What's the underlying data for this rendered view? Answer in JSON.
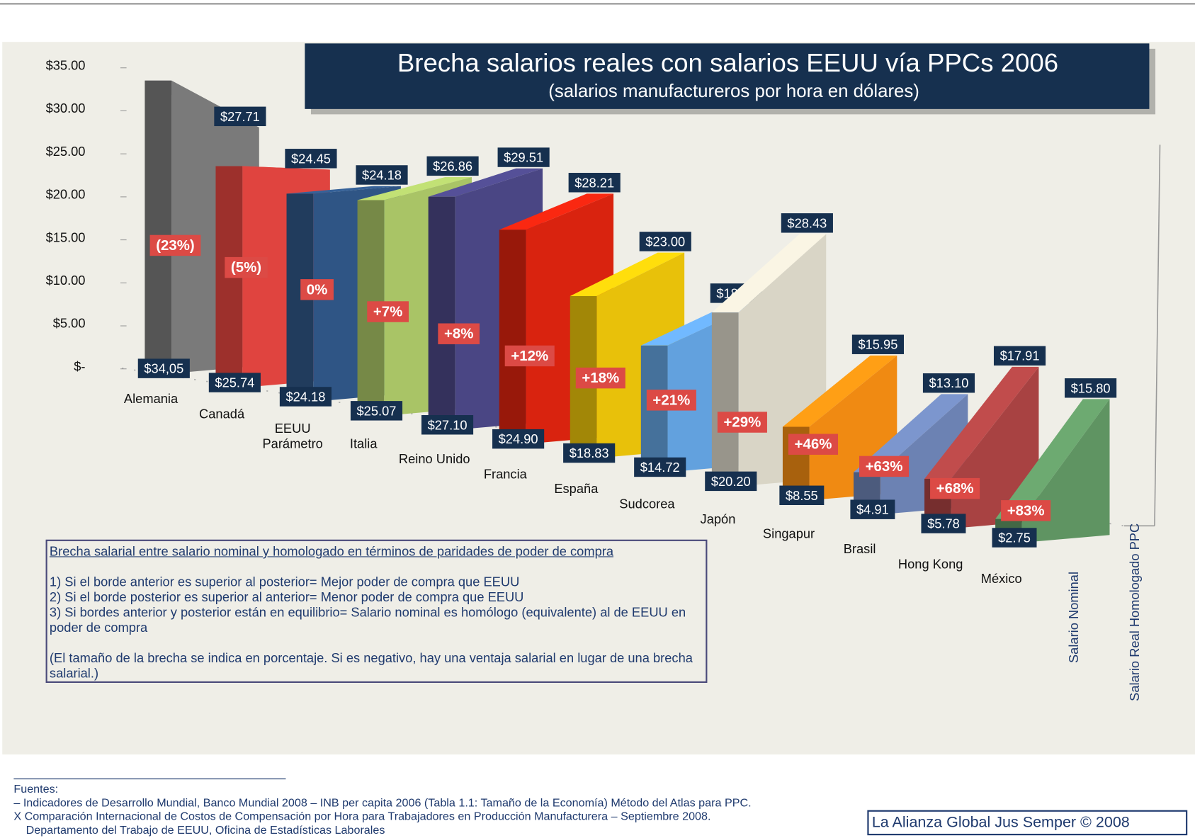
{
  "chart_data": {
    "type": "bar",
    "title": "Brecha salarios reales con salarios EEUU vía PPCs 2006",
    "subtitle": "(salarios manufactureros por hora en dólares)",
    "categories": [
      "Alemania",
      "Canadá",
      "EEUU Parámetro",
      "Italia",
      "Reino Unido",
      "Francia",
      "España",
      "Sudcorea",
      "Japón",
      "Singapur",
      "Brasil",
      "Hong Kong",
      "México"
    ],
    "colors": [
      "#7a7a7a",
      "#e0443f",
      "#2f5585",
      "#a9c466",
      "#4a4684",
      "#d9230f",
      "#e8c10a",
      "#62a1de",
      "#d9d5c6",
      "#f08a12",
      "#6c82b3",
      "#a84242",
      "#5f9462"
    ],
    "series": [
      {
        "name": "Salario Nominal",
        "values": [
          34.05,
          25.74,
          24.18,
          25.07,
          27.1,
          24.9,
          18.83,
          14.72,
          20.2,
          8.55,
          4.91,
          5.78,
          2.75
        ],
        "value_labels": [
          "$34,05",
          "$25.74",
          "$24.18",
          "$25.07",
          "$27.10",
          "$24.90",
          "$18.83",
          "$14.72",
          "$20.20",
          "$8.55",
          "$4.91",
          "$5.78",
          "$2.75"
        ]
      },
      {
        "name": "Salario Real Homologado PPC",
        "values": [
          27.71,
          24.45,
          24.18,
          26.86,
          29.51,
          28.21,
          23.0,
          18.63,
          28.43,
          15.95,
          13.1,
          17.91,
          15.8
        ],
        "value_labels": [
          "$27.71",
          "$24.45",
          "$24.18",
          "$26.86",
          "$29.51",
          "$28.21",
          "$23.00",
          "$18.63",
          "$28.43",
          "$15.95",
          "$13.10",
          "$17.91",
          "$15.80"
        ]
      }
    ],
    "gaps": {
      "values": [
        -23,
        -5,
        0,
        7,
        8,
        12,
        18,
        21,
        29,
        46,
        63,
        68,
        83
      ],
      "value_labels": [
        "(23%)",
        "(5%)",
        "0%",
        "+7%",
        "+8%",
        "+12%",
        "+18%",
        "+21%",
        "+29%",
        "+46%",
        "+63%",
        "+68%",
        "+83%"
      ]
    },
    "ylim": [
      0,
      35
    ],
    "yticks": [
      {
        "value": 35,
        "label": "$35.00"
      },
      {
        "value": 30,
        "label": "$30.00"
      },
      {
        "value": 25,
        "label": "$25.00"
      },
      {
        "value": 20,
        "label": "$20.00"
      },
      {
        "value": 15,
        "label": "$15.00"
      },
      {
        "value": 10,
        "label": "$10.00"
      },
      {
        "value": 5,
        "label": "$5.00"
      },
      {
        "value": 0,
        "label": "$-"
      }
    ]
  },
  "notes": {
    "heading": "Brecha salarial entre salario nominal y homologado en términos de paridades de poder de compra",
    "lines": [
      "1) Si el borde anterior es superior al posterior= Mejor poder de compra que EEUU",
      "2) Si el borde posterior es superior al anterior= Menor poder de compra que EEUU",
      "3) Si bordes anterior y posterior están en equilibrio=  Salario nominal es homólogo (equivalente) al de EEUU en poder de compra"
    ],
    "remark": "(El tamaño de la brecha se indica en porcentaje.  Si es negativo, hay una ventaja salarial en lugar de una brecha salarial.)"
  },
  "sources": {
    "heading": "Fuentes:",
    "lines": [
      "– Indicadores de Desarrollo Mundial, Banco Mundial 2008 – INB per capita 2006 (Tabla 1.1: Tamaño de la Economía) Método del Atlas para PPC.",
      "X Comparación Internacional de Costos de Compensación por Hora para Trabajadores en Producción Manufacturera – Septiembre 2008.",
      "Departamento del Trabajo de EEUU, Oficina de Estadísticas Laborales"
    ]
  },
  "credit": "La Alianza Global Jus Semper © 2008"
}
